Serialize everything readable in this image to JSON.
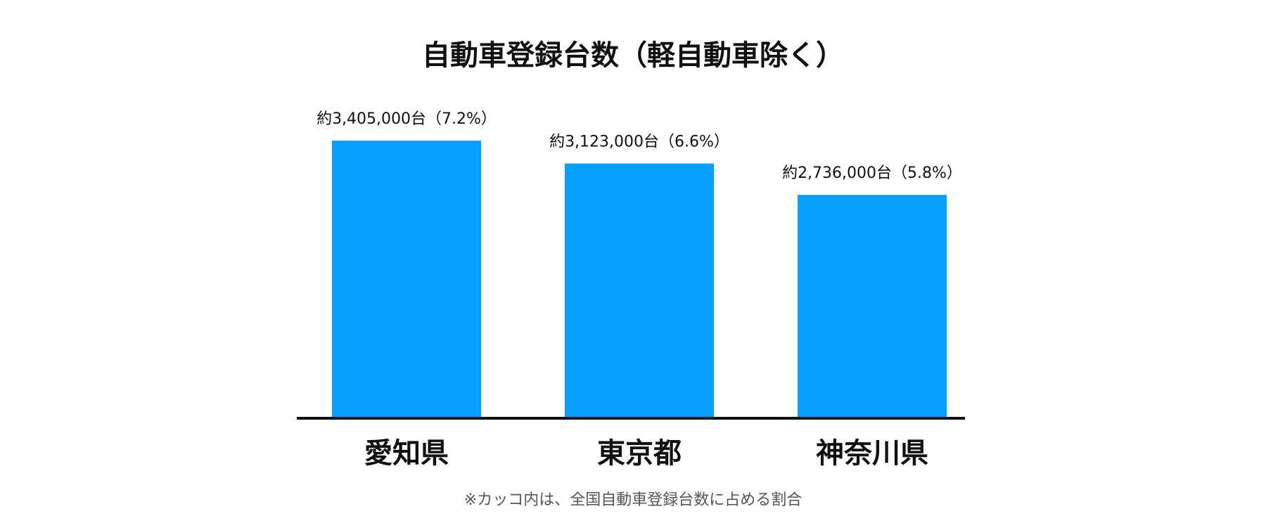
{
  "chart_data": {
    "type": "bar",
    "title": "自動車登録台数（軽自動車除く）",
    "categories": [
      "愛知県",
      "東京都",
      "神奈川県"
    ],
    "values": [
      3405000,
      3123000,
      2736000
    ],
    "data_labels": [
      "約3,405,000台（7.2%）",
      "約3,123,000台（6.6%）",
      "約2,736,000台（5.8%）"
    ],
    "shares_percent": [
      7.2,
      6.6,
      5.8
    ],
    "bar_color": "#07a0ff",
    "axis_color": "#111111",
    "ylim": [
      0,
      3405000
    ],
    "grid": false,
    "legend": "none",
    "footnote": "※カッコ内は、全国自動車登録台数に占める割合"
  }
}
